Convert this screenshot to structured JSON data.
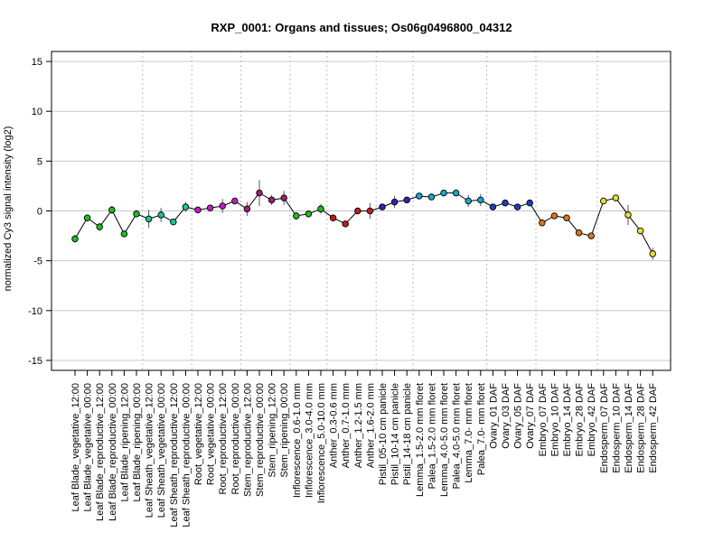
{
  "chart_data": {
    "type": "line",
    "title": "RXP_0001: Organs and tissues; Os06g0496800_04312",
    "ylabel": "normalized Cy3 signal intensity (log2)",
    "xlabel": "",
    "ylim": [
      -16,
      16
    ],
    "yticks": [
      -15,
      -10,
      -5,
      0,
      5,
      10,
      15
    ],
    "grid": "horizontal solid lines at y ticks; vertical dotted separators between sample groups",
    "legend": "none",
    "line_color": "#000000",
    "categories": [
      "Leaf Blade_vegetative_12:00",
      "Leaf Blade_vegetative_00:00",
      "Leaf Blade_reproductive_12:00",
      "Leaf Blade_reproductive_00:00",
      "Leaf Blade_ripening_12:00",
      "Leaf Blade_ripening_00:00",
      "Leaf Sheath_vegetative_12:00",
      "Leaf Sheath_vegetative_00:00",
      "Leaf Sheath_reproductive_12:00",
      "Leaf Sheath_reproductive_00:00",
      "Root_vegetative_12:00",
      "Root_vegetative_00:00",
      "Root_reproductive_12:00",
      "Root_reproductive_00:00",
      "Stem_reproductive_12:00",
      "Stem_reproductive_00:00",
      "Stem_ripening_12:00",
      "Stem_ripening_00:00",
      "Inflorescence_0.6-1.0 mm",
      "Inflorescence_3.0-4.0 mm",
      "Inflorescence_5.0-10.0 mm",
      "Anther_0.3-0.6 mm",
      "Anther_0.7-1.0 mm",
      "Anther_1.2-1.5 mm",
      "Anther_1.6-2.0 mm",
      "Pistil_05-10 cm panicle",
      "Pistil_10-14 cm panicle",
      "Pistil_14-18 cm panicle",
      "Lemma_1.5-2.0 mm floret",
      "Palea_1.5-2.0 mm floret",
      "Lemma_4.0-5.0 mm floret",
      "Palea_4.0-5.0 mm floret",
      "Lemma_7.0- mm floret",
      "Palea_7.0- mm floret",
      "Ovary_01 DAF",
      "Ovary_03 DAF",
      "Ovary_05 DAF",
      "Ovary_07 DAF",
      "Embryo_07 DAF",
      "Embryo_10 DAF",
      "Embryo_14 DAF",
      "Embryo_28 DAF",
      "Embryo_42 DAF",
      "Endosperm_07 DAF",
      "Endosperm_10 DAF",
      "Endosperm_14 DAF",
      "Endosperm_28 DAF",
      "Endosperm_42 DAF"
    ],
    "values": [
      -2.8,
      -0.7,
      -1.6,
      0.1,
      -2.3,
      -0.3,
      -0.8,
      -0.4,
      -1.1,
      0.4,
      0.1,
      0.3,
      0.5,
      1.0,
      0.2,
      1.8,
      1.1,
      1.3,
      -0.5,
      -0.3,
      0.2,
      -0.7,
      -1.3,
      0.0,
      0.0,
      0.4,
      0.9,
      1.1,
      1.5,
      1.4,
      1.8,
      1.8,
      1.0,
      1.1,
      0.4,
      0.8,
      0.4,
      0.8,
      -1.2,
      -0.5,
      -0.7,
      -2.2,
      -2.5,
      1.0,
      1.3,
      -0.4,
      -2.0,
      -4.3
    ],
    "errors": [
      0.4,
      0.2,
      0.4,
      0.4,
      0.2,
      0.2,
      0.9,
      0.7,
      0.2,
      0.5,
      0.1,
      0.2,
      0.7,
      0.2,
      0.7,
      1.3,
      0.5,
      0.7,
      0.4,
      0.2,
      0.5,
      0.2,
      0.3,
      0.2,
      0.8,
      0.2,
      0.6,
      0.2,
      0.2,
      0.3,
      0.2,
      0.2,
      0.6,
      0.6,
      0.3,
      0.2,
      0.2,
      0.2,
      0.2,
      0.2,
      0.2,
      0.2,
      0.2,
      0.3,
      0.3,
      1.0,
      0.3,
      0.6
    ],
    "point_colors": [
      "#1fbd1f",
      "#1fbd1f",
      "#1fbd1f",
      "#1fbd1f",
      "#1fbd1f",
      "#1fbd1f",
      "#18c49a",
      "#18c49a",
      "#18c49a",
      "#18c49a",
      "#c21fc2",
      "#c21fc2",
      "#c21fc2",
      "#c21fc2",
      "#a01f7a",
      "#a01f7a",
      "#a01f7a",
      "#a01f7a",
      "#1fbd1f",
      "#1fbd1f",
      "#1fbd1f",
      "#c41a1a",
      "#c41a1a",
      "#c41a1a",
      "#c41a1a",
      "#3e1ab8",
      "#3e1ab8",
      "#3e1ab8",
      "#19a6cf",
      "#19a6cf",
      "#19a6cf",
      "#19a6cf",
      "#19a6cf",
      "#19a6cf",
      "#1f3fbf",
      "#1f3fbf",
      "#1f3fbf",
      "#1f3fbf",
      "#d9771c",
      "#d9771c",
      "#d9771c",
      "#d9771c",
      "#d9771c",
      "#e2e233",
      "#e2e233",
      "#e2e233",
      "#e2e233",
      "#e2e233"
    ],
    "group_separators_after_index": [
      5,
      9,
      13,
      17,
      20,
      24,
      27,
      33,
      37,
      42
    ]
  }
}
